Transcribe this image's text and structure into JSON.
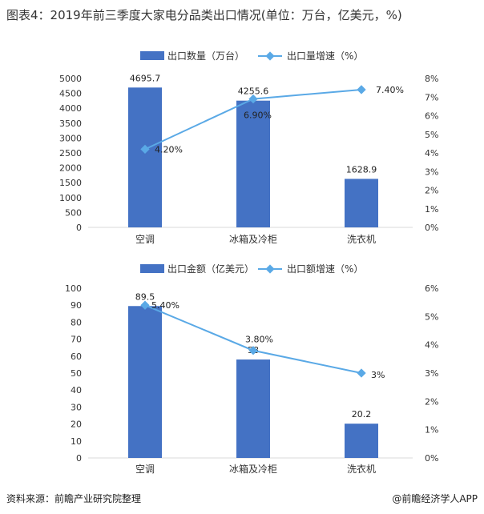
{
  "header": {
    "title": "图表4：2019年前三季度大家电分品类出口情况(单位：万台，亿美元，%)"
  },
  "footer": {
    "source": "资料来源：前瞻产业研究院整理",
    "brand": "@前瞻经济学人APP"
  },
  "colors": {
    "bar": "#4472c4",
    "line": "#5aa9e6"
  },
  "chart_data": [
    {
      "type": "bar",
      "categories": [
        "空调",
        "冰箱及冷柜",
        "洗衣机"
      ],
      "series": [
        {
          "name": "出口数量（万台）",
          "kind": "bar",
          "axis": "left",
          "values": [
            4695.7,
            4255.6,
            1628.9
          ],
          "labels": [
            "4695.7",
            "4255.6",
            "1628.9"
          ]
        },
        {
          "name": "出口量增速（%）",
          "kind": "line",
          "axis": "right",
          "values": [
            4.2,
            6.9,
            7.4
          ],
          "labels": [
            "4.20%",
            "6.90%",
            "7.40%"
          ]
        }
      ],
      "ylim": [
        0,
        5000
      ],
      "yticks": [
        "0",
        "500",
        "1000",
        "1500",
        "2000",
        "2500",
        "3000",
        "3500",
        "4000",
        "4500",
        "5000"
      ],
      "y2lim": [
        0,
        8
      ],
      "y2ticks": [
        "0%",
        "1%",
        "2%",
        "3%",
        "4%",
        "5%",
        "6%",
        "7%",
        "8%"
      ],
      "legend": "top"
    },
    {
      "type": "bar",
      "categories": [
        "空调",
        "冰箱及冷柜",
        "洗衣机"
      ],
      "series": [
        {
          "name": "出口金额（亿美元）",
          "kind": "bar",
          "axis": "left",
          "values": [
            89.5,
            58,
            20.2
          ],
          "labels": [
            "89.5",
            "58",
            "20.2"
          ]
        },
        {
          "name": "出口额增速（%）",
          "kind": "line",
          "axis": "right",
          "values": [
            5.4,
            3.8,
            3
          ],
          "labels": [
            "5.40%",
            "3.80%",
            "3%"
          ]
        }
      ],
      "ylim": [
        0,
        100
      ],
      "yticks": [
        "0",
        "10",
        "20",
        "30",
        "40",
        "50",
        "60",
        "70",
        "80",
        "90",
        "100"
      ],
      "y2lim": [
        0,
        6
      ],
      "y2ticks": [
        "0%",
        "1%",
        "2%",
        "3%",
        "4%",
        "5%",
        "6%"
      ],
      "legend": "top"
    }
  ]
}
